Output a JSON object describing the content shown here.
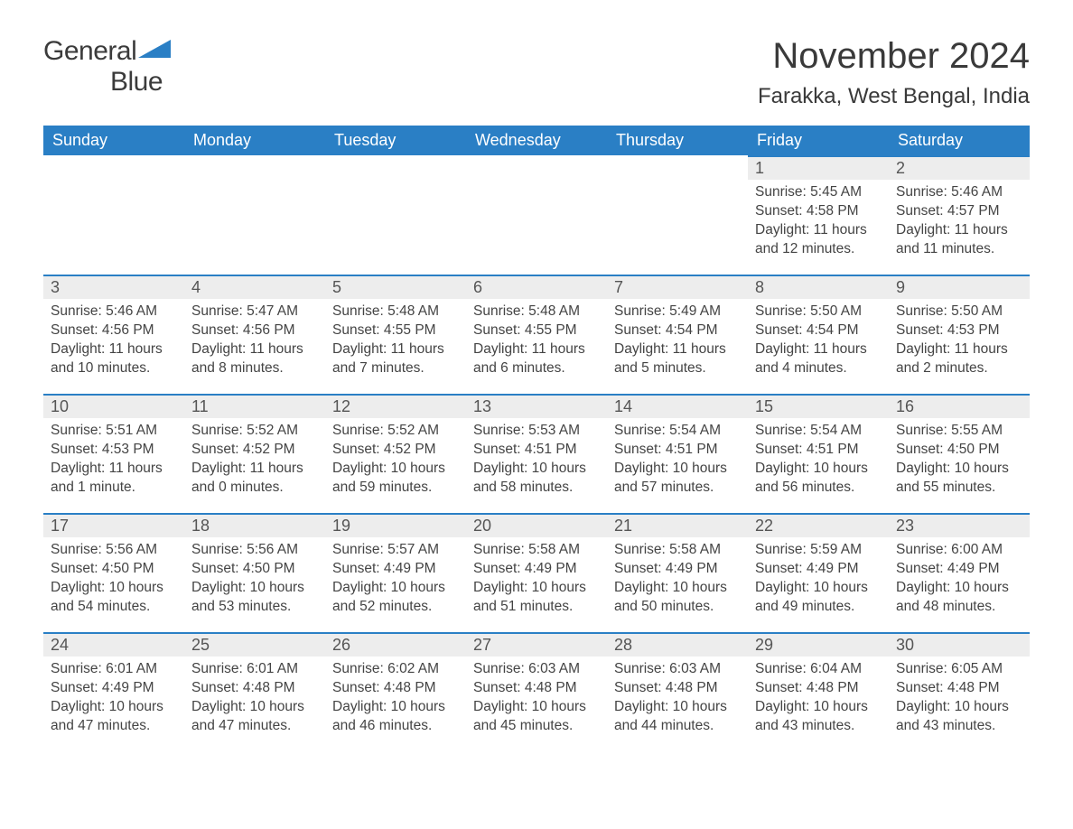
{
  "logo": {
    "word1": "General",
    "word2": "Blue"
  },
  "title": "November 2024",
  "location": "Farakka, West Bengal, India",
  "colors": {
    "accent": "#2a7fc5",
    "header_text": "#ffffff",
    "daynum_bg": "#ededed",
    "body_text": "#444444",
    "page_bg": "#ffffff"
  },
  "fonts": {
    "title_size": 40,
    "location_size": 24,
    "header_size": 18,
    "cell_size": 15.5
  },
  "weekdays": [
    "Sunday",
    "Monday",
    "Tuesday",
    "Wednesday",
    "Thursday",
    "Friday",
    "Saturday"
  ],
  "first_weekday_index": 5,
  "days": [
    {
      "n": 1,
      "sunrise": "5:45 AM",
      "sunset": "4:58 PM",
      "daylight": "11 hours and 12 minutes."
    },
    {
      "n": 2,
      "sunrise": "5:46 AM",
      "sunset": "4:57 PM",
      "daylight": "11 hours and 11 minutes."
    },
    {
      "n": 3,
      "sunrise": "5:46 AM",
      "sunset": "4:56 PM",
      "daylight": "11 hours and 10 minutes."
    },
    {
      "n": 4,
      "sunrise": "5:47 AM",
      "sunset": "4:56 PM",
      "daylight": "11 hours and 8 minutes."
    },
    {
      "n": 5,
      "sunrise": "5:48 AM",
      "sunset": "4:55 PM",
      "daylight": "11 hours and 7 minutes."
    },
    {
      "n": 6,
      "sunrise": "5:48 AM",
      "sunset": "4:55 PM",
      "daylight": "11 hours and 6 minutes."
    },
    {
      "n": 7,
      "sunrise": "5:49 AM",
      "sunset": "4:54 PM",
      "daylight": "11 hours and 5 minutes."
    },
    {
      "n": 8,
      "sunrise": "5:50 AM",
      "sunset": "4:54 PM",
      "daylight": "11 hours and 4 minutes."
    },
    {
      "n": 9,
      "sunrise": "5:50 AM",
      "sunset": "4:53 PM",
      "daylight": "11 hours and 2 minutes."
    },
    {
      "n": 10,
      "sunrise": "5:51 AM",
      "sunset": "4:53 PM",
      "daylight": "11 hours and 1 minute."
    },
    {
      "n": 11,
      "sunrise": "5:52 AM",
      "sunset": "4:52 PM",
      "daylight": "11 hours and 0 minutes."
    },
    {
      "n": 12,
      "sunrise": "5:52 AM",
      "sunset": "4:52 PM",
      "daylight": "10 hours and 59 minutes."
    },
    {
      "n": 13,
      "sunrise": "5:53 AM",
      "sunset": "4:51 PM",
      "daylight": "10 hours and 58 minutes."
    },
    {
      "n": 14,
      "sunrise": "5:54 AM",
      "sunset": "4:51 PM",
      "daylight": "10 hours and 57 minutes."
    },
    {
      "n": 15,
      "sunrise": "5:54 AM",
      "sunset": "4:51 PM",
      "daylight": "10 hours and 56 minutes."
    },
    {
      "n": 16,
      "sunrise": "5:55 AM",
      "sunset": "4:50 PM",
      "daylight": "10 hours and 55 minutes."
    },
    {
      "n": 17,
      "sunrise": "5:56 AM",
      "sunset": "4:50 PM",
      "daylight": "10 hours and 54 minutes."
    },
    {
      "n": 18,
      "sunrise": "5:56 AM",
      "sunset": "4:50 PM",
      "daylight": "10 hours and 53 minutes."
    },
    {
      "n": 19,
      "sunrise": "5:57 AM",
      "sunset": "4:49 PM",
      "daylight": "10 hours and 52 minutes."
    },
    {
      "n": 20,
      "sunrise": "5:58 AM",
      "sunset": "4:49 PM",
      "daylight": "10 hours and 51 minutes."
    },
    {
      "n": 21,
      "sunrise": "5:58 AM",
      "sunset": "4:49 PM",
      "daylight": "10 hours and 50 minutes."
    },
    {
      "n": 22,
      "sunrise": "5:59 AM",
      "sunset": "4:49 PM",
      "daylight": "10 hours and 49 minutes."
    },
    {
      "n": 23,
      "sunrise": "6:00 AM",
      "sunset": "4:49 PM",
      "daylight": "10 hours and 48 minutes."
    },
    {
      "n": 24,
      "sunrise": "6:01 AM",
      "sunset": "4:49 PM",
      "daylight": "10 hours and 47 minutes."
    },
    {
      "n": 25,
      "sunrise": "6:01 AM",
      "sunset": "4:48 PM",
      "daylight": "10 hours and 47 minutes."
    },
    {
      "n": 26,
      "sunrise": "6:02 AM",
      "sunset": "4:48 PM",
      "daylight": "10 hours and 46 minutes."
    },
    {
      "n": 27,
      "sunrise": "6:03 AM",
      "sunset": "4:48 PM",
      "daylight": "10 hours and 45 minutes."
    },
    {
      "n": 28,
      "sunrise": "6:03 AM",
      "sunset": "4:48 PM",
      "daylight": "10 hours and 44 minutes."
    },
    {
      "n": 29,
      "sunrise": "6:04 AM",
      "sunset": "4:48 PM",
      "daylight": "10 hours and 43 minutes."
    },
    {
      "n": 30,
      "sunrise": "6:05 AM",
      "sunset": "4:48 PM",
      "daylight": "10 hours and 43 minutes."
    }
  ],
  "labels": {
    "sunrise": "Sunrise: ",
    "sunset": "Sunset: ",
    "daylight": "Daylight: "
  }
}
